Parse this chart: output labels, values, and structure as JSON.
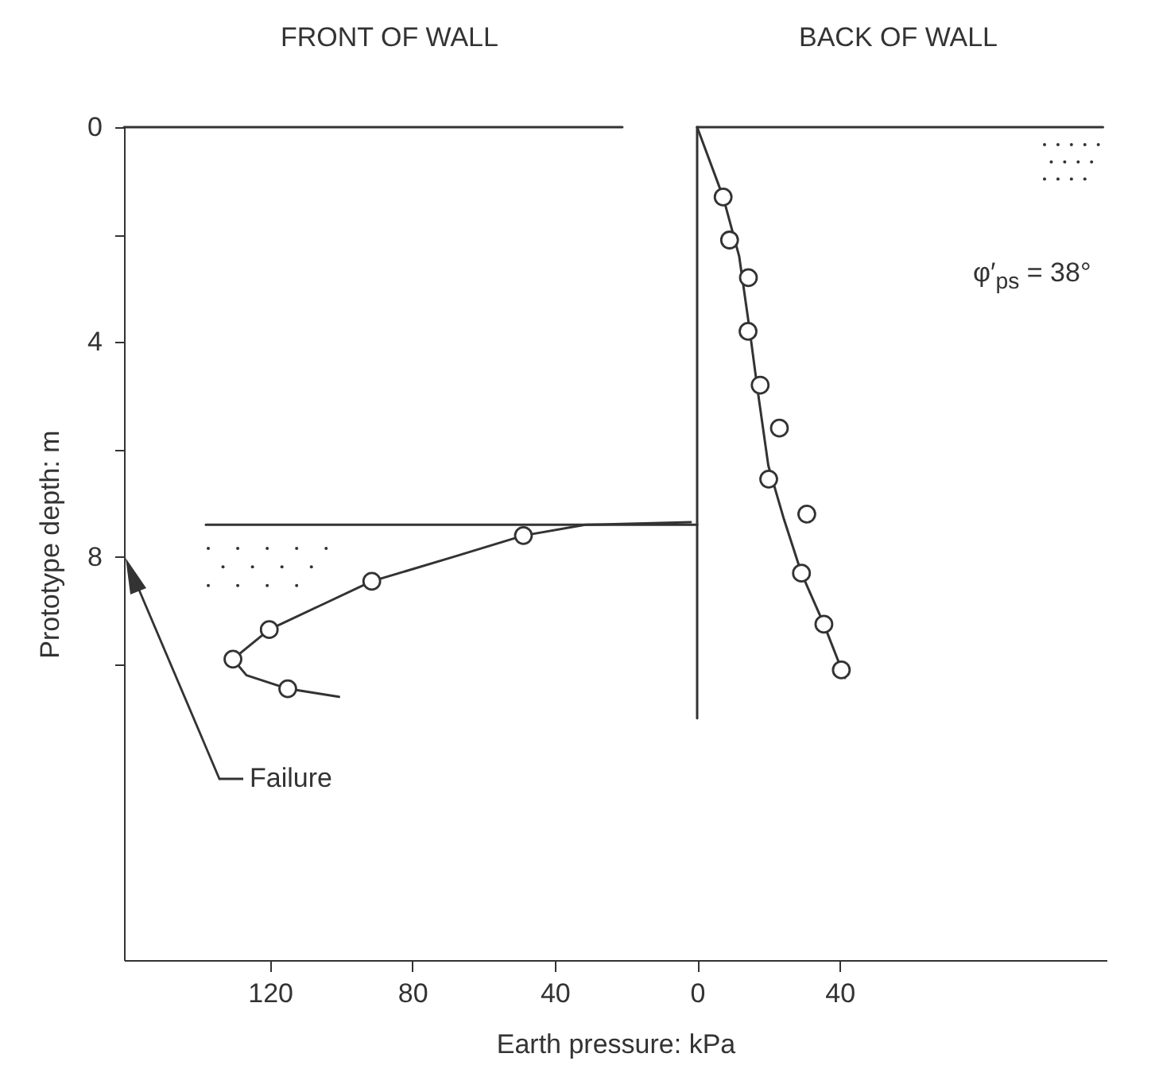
{
  "chart_data": {
    "type": "scatter",
    "xlabel": "Earth pressure: kPa",
    "ylabel": "Prototype depth: m",
    "xlim": [
      -161,
      115
    ],
    "ylim": [
      15.5,
      0
    ],
    "xticks": [
      {
        "value": -120,
        "label": "120"
      },
      {
        "value": -80,
        "label": "80"
      },
      {
        "value": -40,
        "label": "40"
      },
      0,
      40
    ],
    "yticks": [
      0,
      {
        "value": 2,
        "label": null
      },
      4,
      {
        "value": 6,
        "label": null
      },
      8,
      {
        "value": 10,
        "label": null
      }
    ],
    "line_style": "solid",
    "series": [
      {
        "marker": "circle",
        "color": "#333333",
        "x": [
          -48.8,
          -91.4,
          -120.2,
          -130.4,
          -115
        ],
        "values": [
          7.6,
          8.45,
          9.35,
          9.9,
          10.45
        ]
      },
      {
        "type": "line",
        "color": "#333333",
        "x": [
          -1.8,
          -31.4,
          -48.8,
          -68.6,
          -91.4,
          -105.8,
          -120.2,
          -130.4,
          -126.6,
          -115,
          -100.6
        ],
        "values": [
          7.35,
          7.4,
          7.6,
          8,
          8.45,
          8.9,
          9.35,
          9.9,
          10.2,
          10.45,
          10.6
        ]
      },
      {
        "marker": "circle",
        "color": "#333333",
        "x": [
          7.3,
          9.1,
          14.4,
          14.3,
          17.7,
          23.1,
          20.1,
          30.8,
          29.3,
          35.6,
          40.5
        ],
        "values": [
          1.3,
          2.1,
          2.8,
          3.8,
          4.8,
          5.6,
          6.55,
          7.2,
          8.3,
          9.25,
          10.1
        ]
      },
      {
        "type": "line",
        "color": "#333333",
        "x": [
          0,
          7.3,
          11.8,
          14.7,
          17,
          20,
          24.4,
          29.3,
          35.6,
          41.5
        ],
        "values": [
          0,
          1.3,
          2.4,
          3.75,
          4.9,
          6.3,
          7.3,
          8.3,
          9.25,
          10.25
        ]
      },
      {
        "type": "line",
        "color": "#333333",
        "x": [
          0,
          0
        ],
        "values": [
          0,
          11
        ]
      },
      {
        "type": "line",
        "color": "#333333",
        "x": [
          -161,
          -21
        ],
        "values": [
          0,
          0
        ]
      },
      {
        "type": "line",
        "color": "#333333",
        "x": [
          0,
          114
        ],
        "values": [
          0,
          0
        ]
      },
      {
        "type": "line",
        "color": "#333333",
        "x": [
          -138,
          0
        ],
        "values": [
          7.4,
          7.4
        ]
      }
    ],
    "annotations": [
      "FRONT OF WALL",
      "BACK OF WALL",
      "φ′$_{ps}$ = 38°",
      "Failure"
    ]
  }
}
